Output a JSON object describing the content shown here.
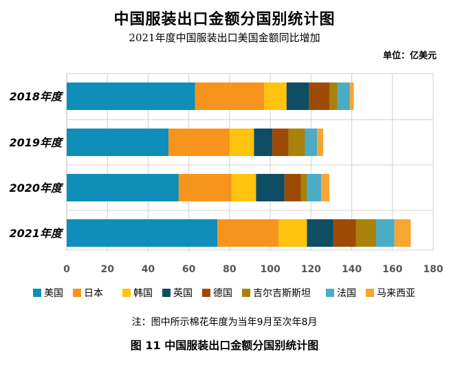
{
  "header": {
    "title": "中国服装出口金额分国别统计图",
    "subtitle": "2021年度中国服装出口美国金额同比增加",
    "unit": "单位：亿美元"
  },
  "footer": {
    "note": "注：图中所示棉花年度为当年9月至次年8月",
    "caption": "图 11    中国服装出口金额分国别统计图"
  },
  "chart_data": {
    "type": "bar",
    "orientation": "horizontal",
    "stacked": true,
    "categories": [
      "2018年度",
      "2019年度",
      "2020年度",
      "2021年度"
    ],
    "xlim": [
      0,
      180
    ],
    "x_ticks": [
      0,
      20,
      40,
      60,
      80,
      100,
      120,
      140,
      160,
      180
    ],
    "grid": "vertical",
    "legend_position": "bottom",
    "series": [
      {
        "name": "美国",
        "color": "#0e8eb8",
        "values": [
          63,
          50,
          55,
          74
        ]
      },
      {
        "name": "日本",
        "color": "#f7941d",
        "values": [
          34,
          30,
          26,
          30
        ]
      },
      {
        "name": "韩国",
        "color": "#ffc20e",
        "values": [
          11,
          12,
          12,
          14
        ]
      },
      {
        "name": "英国",
        "color": "#0e4d64",
        "values": [
          11,
          9,
          14,
          13
        ]
      },
      {
        "name": "德国",
        "color": "#9e4a07",
        "values": [
          10,
          8,
          8,
          11
        ]
      },
      {
        "name": "吉尔吉斯斯坦",
        "color": "#a8820a",
        "values": [
          4,
          8,
          3,
          10
        ]
      },
      {
        "name": "法国",
        "color": "#4bacc6",
        "values": [
          6,
          6,
          7,
          9
        ]
      },
      {
        "name": "马来西亚",
        "color": "#f9a532",
        "values": [
          2,
          3,
          4,
          8
        ]
      }
    ]
  }
}
